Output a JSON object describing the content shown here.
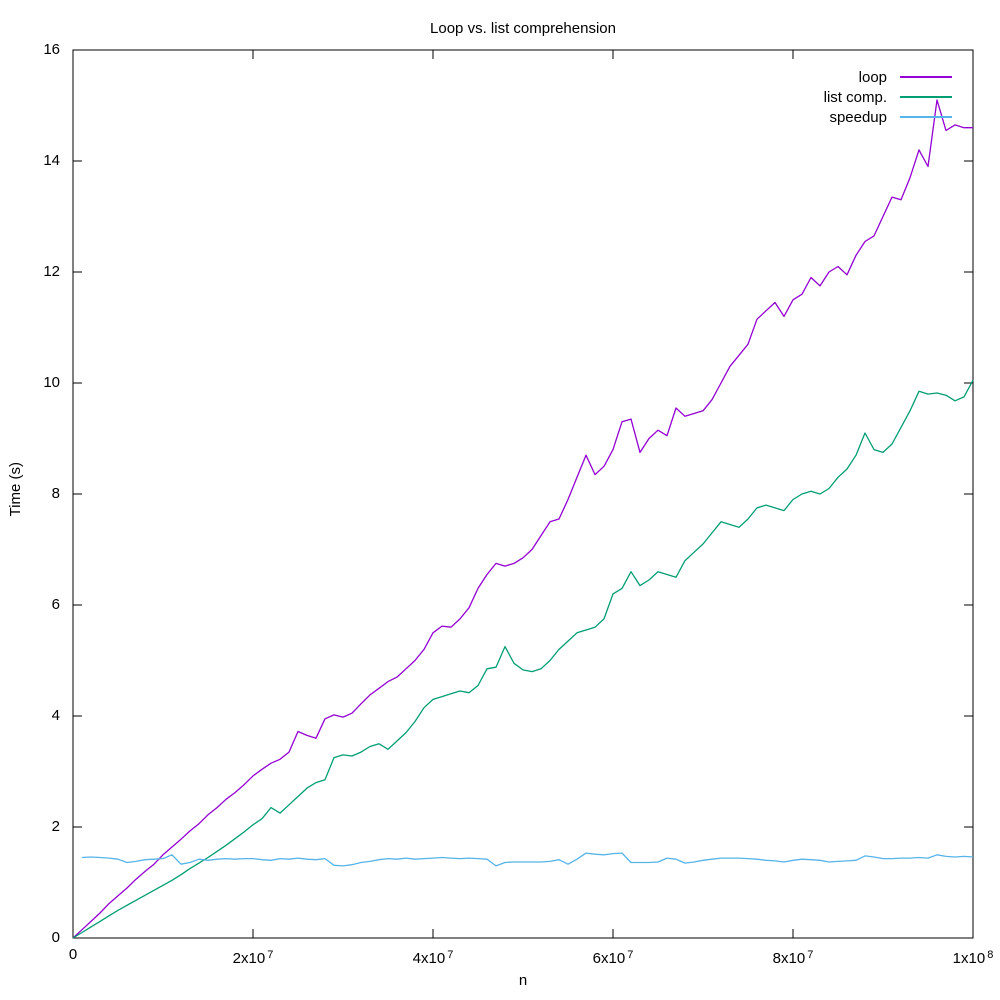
{
  "chart_data": {
    "type": "line",
    "title": "Loop vs. list comprehension",
    "xlabel": "n",
    "ylabel": "Time (s)",
    "xlim": [
      0,
      100000000
    ],
    "ylim": [
      0,
      16
    ],
    "grid": false,
    "legend_position": "inside top-right",
    "x_step": 1000000,
    "xticks": [
      {
        "value": 0,
        "base": "0",
        "exp": ""
      },
      {
        "value": 20000000,
        "base": "2x10",
        "exp": "7"
      },
      {
        "value": 40000000,
        "base": "4x10",
        "exp": "7"
      },
      {
        "value": 60000000,
        "base": "6x10",
        "exp": "7"
      },
      {
        "value": 80000000,
        "base": "8x10",
        "exp": "7"
      },
      {
        "value": 100000000,
        "base": "1x10",
        "exp": "8"
      }
    ],
    "yticks": [
      {
        "value": 0,
        "label": "0"
      },
      {
        "value": 2,
        "label": "2"
      },
      {
        "value": 4,
        "label": "4"
      },
      {
        "value": 6,
        "label": "6"
      },
      {
        "value": 8,
        "label": "8"
      },
      {
        "value": 10,
        "label": "10"
      },
      {
        "value": 12,
        "label": "12"
      },
      {
        "value": 14,
        "label": "14"
      },
      {
        "value": 16,
        "label": "16"
      }
    ],
    "series": [
      {
        "name": "loop",
        "color": "#9400d3",
        "x_start": 0,
        "values": [
          0,
          0.15,
          0.3,
          0.45,
          0.62,
          0.76,
          0.9,
          1.06,
          1.2,
          1.33,
          1.5,
          1.64,
          1.78,
          1.93,
          2.06,
          2.22,
          2.35,
          2.5,
          2.62,
          2.76,
          2.92,
          3.04,
          3.15,
          3.22,
          3.35,
          3.72,
          3.65,
          3.6,
          3.95,
          4.02,
          3.98,
          4.05,
          4.22,
          4.38,
          4.5,
          4.62,
          4.7,
          4.85,
          5.0,
          5.2,
          5.5,
          5.62,
          5.6,
          5.75,
          5.95,
          6.3,
          6.55,
          6.75,
          6.7,
          6.75,
          6.85,
          7.0,
          7.25,
          7.5,
          7.55,
          7.9,
          8.3,
          8.7,
          8.35,
          8.5,
          8.8,
          9.3,
          9.35,
          8.75,
          9.0,
          9.15,
          9.05,
          9.55,
          9.4,
          9.45,
          9.5,
          9.7,
          10.0,
          10.3,
          10.5,
          10.7,
          11.15,
          11.3,
          11.45,
          11.2,
          11.5,
          11.6,
          11.9,
          11.75,
          12.0,
          12.1,
          11.95,
          12.3,
          12.55,
          12.65,
          13.0,
          13.35,
          13.3,
          13.7,
          14.2,
          13.9,
          15.1,
          14.55,
          14.65,
          14.6,
          14.6
        ]
      },
      {
        "name": "list comp.",
        "color": "#009e73",
        "x_start": 0,
        "values": [
          0,
          0.1,
          0.2,
          0.3,
          0.4,
          0.5,
          0.59,
          0.68,
          0.77,
          0.86,
          0.95,
          1.04,
          1.14,
          1.25,
          1.35,
          1.45,
          1.56,
          1.67,
          1.79,
          1.91,
          2.04,
          2.15,
          2.35,
          2.25,
          2.4,
          2.55,
          2.7,
          2.8,
          2.85,
          3.25,
          3.3,
          3.28,
          3.35,
          3.45,
          3.5,
          3.4,
          3.55,
          3.7,
          3.9,
          4.15,
          4.3,
          4.35,
          4.4,
          4.45,
          4.42,
          4.55,
          4.85,
          4.88,
          5.25,
          4.95,
          4.83,
          4.8,
          4.85,
          5.0,
          5.2,
          5.35,
          5.5,
          5.55,
          5.6,
          5.75,
          6.2,
          6.3,
          6.6,
          6.35,
          6.45,
          6.6,
          6.55,
          6.5,
          6.8,
          6.95,
          7.1,
          7.3,
          7.5,
          7.45,
          7.4,
          7.55,
          7.75,
          7.8,
          7.75,
          7.7,
          7.9,
          8.0,
          8.05,
          8.0,
          8.1,
          8.3,
          8.45,
          8.7,
          9.1,
          8.8,
          8.75,
          8.9,
          9.2,
          9.5,
          9.85,
          9.8,
          9.82,
          9.78,
          9.68,
          9.75,
          10.05
        ]
      },
      {
        "name": "speedup",
        "color": "#56b4e9",
        "x_start": 1000000,
        "values": [
          1.45,
          1.46,
          1.45,
          1.44,
          1.42,
          1.36,
          1.38,
          1.41,
          1.42,
          1.43,
          1.5,
          1.33,
          1.36,
          1.42,
          1.4,
          1.42,
          1.43,
          1.42,
          1.43,
          1.43,
          1.41,
          1.4,
          1.43,
          1.42,
          1.44,
          1.42,
          1.41,
          1.43,
          1.31,
          1.3,
          1.32,
          1.36,
          1.38,
          1.41,
          1.43,
          1.42,
          1.44,
          1.42,
          1.43,
          1.44,
          1.45,
          1.44,
          1.43,
          1.44,
          1.43,
          1.42,
          1.3,
          1.36,
          1.37,
          1.37,
          1.37,
          1.37,
          1.38,
          1.41,
          1.33,
          1.42,
          1.53,
          1.51,
          1.5,
          1.52,
          1.53,
          1.36,
          1.36,
          1.36,
          1.37,
          1.44,
          1.42,
          1.35,
          1.37,
          1.4,
          1.42,
          1.44,
          1.44,
          1.44,
          1.43,
          1.42,
          1.4,
          1.39,
          1.37,
          1.4,
          1.42,
          1.41,
          1.4,
          1.37,
          1.38,
          1.39,
          1.4,
          1.48,
          1.46,
          1.43,
          1.43,
          1.44,
          1.44,
          1.45,
          1.44,
          1.5,
          1.47,
          1.46,
          1.47,
          1.46
        ]
      }
    ]
  },
  "plot_style": {
    "border_color": "#000000",
    "background": "#ffffff",
    "tick_length": 9
  }
}
